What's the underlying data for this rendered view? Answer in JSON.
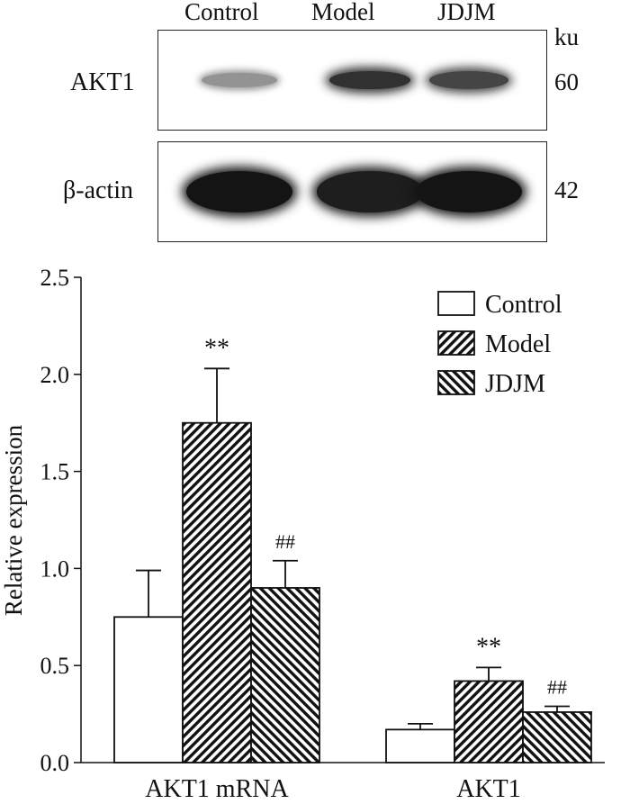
{
  "blot": {
    "lanes": [
      "Control",
      "Model",
      "JDJM"
    ],
    "unit": "ku",
    "rows": [
      {
        "label": "AKT1",
        "kd": "60",
        "intensity": [
          0.35,
          0.85,
          0.75
        ]
      },
      {
        "label": "β-actin",
        "kd": "42",
        "intensity": [
          1.0,
          0.95,
          1.0
        ]
      }
    ]
  },
  "colors": {
    "bar_edge": "#111111",
    "control_fill": "#ffffff",
    "hatch": "#111111"
  },
  "chart_data": {
    "type": "bar",
    "ylabel": "Relative expression",
    "ylim": [
      0,
      2.5
    ],
    "yticks": [
      "0.0",
      "0.5",
      "1.0",
      "1.5",
      "2.0",
      "2.5"
    ],
    "categories": [
      "AKT1 mRNA",
      "AKT1"
    ],
    "series": [
      {
        "name": "Control",
        "values": [
          0.75,
          0.17
        ],
        "errors": [
          0.24,
          0.03
        ],
        "marks": [
          "",
          ""
        ]
      },
      {
        "name": "Model",
        "values": [
          1.75,
          0.42
        ],
        "errors": [
          0.28,
          0.07
        ],
        "marks": [
          "**",
          "**"
        ]
      },
      {
        "name": "JDJM",
        "values": [
          0.9,
          0.26
        ],
        "errors": [
          0.14,
          0.03
        ],
        "marks": [
          "##",
          "##"
        ]
      }
    ],
    "legend_position": "top-right",
    "grid": false
  }
}
